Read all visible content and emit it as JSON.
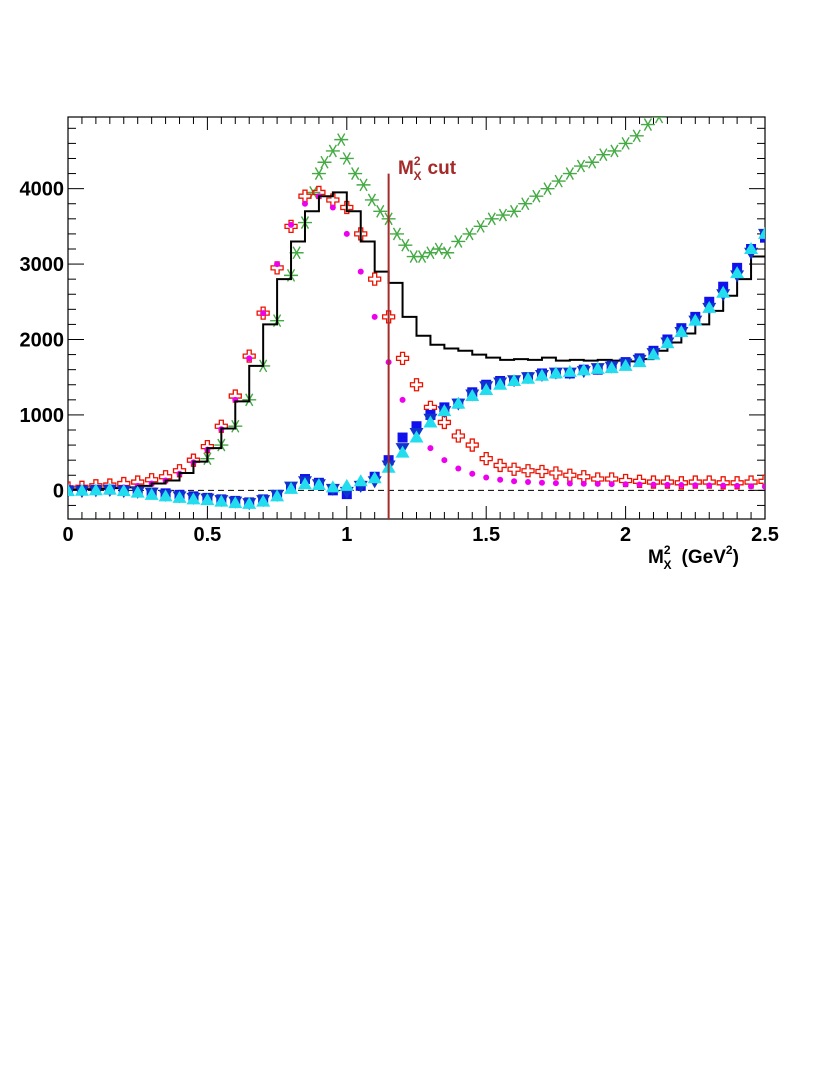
{
  "chart_data": {
    "type": "scatter",
    "title": "",
    "xlabel": {
      "base": "M",
      "sup": "2",
      "sub": "X",
      "units": "(GeV",
      "units_sup": "2",
      "units_close": ")"
    },
    "ylabel": "",
    "xlim": [
      0,
      2.5
    ],
    "ylim": [
      -380,
      4950
    ],
    "xticks": [
      0,
      0.5,
      1,
      1.5,
      2,
      2.5
    ],
    "xtick_labels": [
      "0",
      "0.5",
      "1",
      "1.5",
      "2",
      "2.5"
    ],
    "yticks": [
      0,
      1000,
      2000,
      3000,
      4000
    ],
    "ytick_labels": [
      "0",
      "1000",
      "2000",
      "3000",
      "4000"
    ],
    "grid": false,
    "zero_line": {
      "y": 0,
      "style": "dashed",
      "color": "#000000"
    },
    "cut": {
      "x": 1.15,
      "y_top": 4200,
      "color": "#a52a2a",
      "label": {
        "base": "M",
        "sup": "2",
        "sub": "X",
        "text": "cut"
      }
    },
    "series": [
      {
        "name": "data histogram",
        "style": "step",
        "color": "#000000",
        "x": [
          0.0,
          0.05,
          0.1,
          0.15,
          0.2,
          0.25,
          0.3,
          0.35,
          0.4,
          0.45,
          0.5,
          0.55,
          0.6,
          0.65,
          0.7,
          0.75,
          0.8,
          0.85,
          0.9,
          0.95,
          1.0,
          1.05,
          1.1,
          1.15,
          1.2,
          1.25,
          1.3,
          1.35,
          1.4,
          1.45,
          1.5,
          1.55,
          1.6,
          1.65,
          1.7,
          1.75,
          1.8,
          1.85,
          1.9,
          1.95,
          2.0,
          2.05,
          2.1,
          2.15,
          2.2,
          2.25,
          2.3,
          2.35,
          2.4,
          2.45,
          2.5
        ],
        "y": [
          10,
          15,
          20,
          30,
          40,
          60,
          90,
          130,
          230,
          380,
          560,
          820,
          1180,
          1650,
          2200,
          2800,
          3300,
          3700,
          3900,
          3950,
          3700,
          3300,
          2900,
          2750,
          2300,
          2050,
          1930,
          1880,
          1850,
          1800,
          1760,
          1730,
          1740,
          1730,
          1760,
          1720,
          1730,
          1720,
          1730,
          1720,
          1710,
          1740,
          1850,
          1960,
          2080,
          2200,
          2380,
          2580,
          2800,
          3100,
          3400
        ]
      },
      {
        "name": "simulation (magenta dots)",
        "style": "marker",
        "marker": "circle",
        "color": "#ee00ee",
        "x": [
          0.0,
          0.05,
          0.1,
          0.15,
          0.2,
          0.25,
          0.3,
          0.35,
          0.4,
          0.45,
          0.5,
          0.55,
          0.6,
          0.65,
          0.7,
          0.75,
          0.8,
          0.85,
          0.9,
          0.95,
          1.0,
          1.05,
          1.1,
          1.15,
          1.2,
          1.25,
          1.3,
          1.35,
          1.4,
          1.45,
          1.5,
          1.55,
          1.6,
          1.65,
          1.7,
          1.75,
          1.8,
          1.85,
          1.9,
          1.95,
          2.0,
          2.05,
          2.1,
          2.15,
          2.2,
          2.25,
          2.3,
          2.35,
          2.4,
          2.45,
          2.5
        ],
        "y": [
          10,
          15,
          20,
          30,
          40,
          60,
          90,
          130,
          220,
          370,
          540,
          810,
          1200,
          1750,
          2350,
          3000,
          3520,
          3800,
          3900,
          3750,
          3400,
          2900,
          2300,
          1700,
          1200,
          820,
          560,
          400,
          290,
          220,
          170,
          140,
          120,
          110,
          100,
          95,
          90,
          88,
          85,
          82,
          80,
          78,
          75,
          72,
          70,
          68,
          65,
          62,
          60,
          55,
          50
        ]
      },
      {
        "name": "red open crosses",
        "style": "marker",
        "marker": "open-cross",
        "color": "#ee1100",
        "x": [
          0.0,
          0.05,
          0.1,
          0.15,
          0.2,
          0.25,
          0.3,
          0.35,
          0.4,
          0.45,
          0.5,
          0.55,
          0.6,
          0.65,
          0.7,
          0.75,
          0.8,
          0.85,
          0.9,
          0.95,
          1.0,
          1.05,
          1.1,
          1.15,
          1.2,
          1.25,
          1.3,
          1.35,
          1.4,
          1.45,
          1.5,
          1.55,
          1.6,
          1.65,
          1.7,
          1.75,
          1.8,
          1.85,
          1.9,
          1.95,
          2.0,
          2.05,
          2.1,
          2.15,
          2.2,
          2.25,
          2.3,
          2.35,
          2.4,
          2.45,
          2.5
        ],
        "y": [
          30,
          40,
          60,
          70,
          90,
          110,
          140,
          180,
          260,
          400,
          580,
          850,
          1250,
          1780,
          2350,
          2950,
          3500,
          3900,
          3950,
          3850,
          3750,
          3400,
          2800,
          2300,
          1750,
          1400,
          1100,
          900,
          720,
          600,
          420,
          330,
          280,
          260,
          250,
          230,
          200,
          180,
          150,
          150,
          130,
          120,
          110,
          110,
          100,
          110,
          110,
          100,
          100,
          110,
          120
        ]
      },
      {
        "name": "green asterisks",
        "style": "marker",
        "marker": "asterisk",
        "color": "#44aa44",
        "x": [
          0.5,
          0.55,
          0.6,
          0.65,
          0.7,
          0.75,
          0.8,
          0.82,
          0.85,
          0.88,
          0.9,
          0.92,
          0.95,
          0.98,
          1.0,
          1.03,
          1.06,
          1.09,
          1.12,
          1.15,
          1.18,
          1.21,
          1.24,
          1.27,
          1.3,
          1.33,
          1.36,
          1.4,
          1.44,
          1.48,
          1.52,
          1.56,
          1.6,
          1.64,
          1.68,
          1.72,
          1.76,
          1.8,
          1.84,
          1.88,
          1.92,
          1.96,
          2.0,
          2.04,
          2.08,
          2.12
        ],
        "y": [
          420,
          600,
          850,
          1200,
          1650,
          2250,
          2850,
          3150,
          3550,
          3950,
          4200,
          4350,
          4500,
          4650,
          4400,
          4200,
          4050,
          3850,
          3700,
          3600,
          3400,
          3250,
          3100,
          3100,
          3150,
          3200,
          3150,
          3300,
          3400,
          3500,
          3600,
          3650,
          3700,
          3800,
          3900,
          4000,
          4100,
          4200,
          4300,
          4350,
          4450,
          4500,
          4600,
          4700,
          4850,
          4950
        ]
      },
      {
        "name": "blue squares",
        "style": "marker",
        "marker": "square",
        "color": "#1111ee",
        "x": [
          0.0,
          0.05,
          0.1,
          0.15,
          0.2,
          0.25,
          0.3,
          0.35,
          0.4,
          0.45,
          0.5,
          0.55,
          0.6,
          0.65,
          0.7,
          0.75,
          0.8,
          0.85,
          0.9,
          0.95,
          1.0,
          1.05,
          1.1,
          1.15,
          1.2,
          1.25,
          1.3,
          1.35,
          1.4,
          1.45,
          1.5,
          1.55,
          1.6,
          1.65,
          1.7,
          1.75,
          1.8,
          1.85,
          1.9,
          1.95,
          2.0,
          2.05,
          2.1,
          2.15,
          2.2,
          2.25,
          2.3,
          2.35,
          2.4,
          2.45,
          2.5
        ],
        "y": [
          0,
          0,
          5,
          10,
          0,
          -20,
          -30,
          -40,
          -60,
          -80,
          -100,
          -120,
          -140,
          -160,
          -120,
          -60,
          40,
          150,
          100,
          0,
          -50,
          60,
          180,
          400,
          700,
          850,
          1000,
          1100,
          1150,
          1300,
          1400,
          1450,
          1450,
          1500,
          1550,
          1550,
          1550,
          1600,
          1600,
          1650,
          1700,
          1750,
          1850,
          2000,
          2150,
          2300,
          2500,
          2700,
          2950,
          3200,
          3350
        ]
      },
      {
        "name": "blue inverted triangles",
        "style": "marker",
        "marker": "triangle-down",
        "color": "#1133cc",
        "x": [
          0.0,
          0.05,
          0.1,
          0.15,
          0.2,
          0.25,
          0.3,
          0.35,
          0.4,
          0.45,
          0.5,
          0.55,
          0.6,
          0.65,
          0.7,
          0.75,
          0.8,
          0.85,
          0.9,
          0.95,
          1.0,
          1.05,
          1.1,
          1.15,
          1.2,
          1.25,
          1.3,
          1.35,
          1.4,
          1.45,
          1.5,
          1.55,
          1.6,
          1.65,
          1.7,
          1.75,
          1.8,
          1.85,
          1.9,
          1.95,
          2.0,
          2.05,
          2.1,
          2.15,
          2.2,
          2.25,
          2.3,
          2.35,
          2.4,
          2.45,
          2.5
        ],
        "y": [
          -10,
          -10,
          0,
          5,
          -10,
          -20,
          -30,
          -60,
          -80,
          -100,
          -110,
          -130,
          -150,
          -170,
          -130,
          -60,
          50,
          120,
          80,
          20,
          -20,
          60,
          120,
          330,
          560,
          760,
          950,
          1050,
          1150,
          1270,
          1380,
          1430,
          1460,
          1500,
          1530,
          1560,
          1560,
          1580,
          1620,
          1640,
          1680,
          1730,
          1820,
          1960,
          2100,
          2250,
          2420,
          2600,
          2850,
          3150,
          3400
        ]
      },
      {
        "name": "cyan triangles",
        "style": "marker",
        "marker": "triangle-up",
        "color": "#22ddee",
        "x": [
          0.0,
          0.05,
          0.1,
          0.15,
          0.2,
          0.25,
          0.3,
          0.35,
          0.4,
          0.45,
          0.5,
          0.55,
          0.6,
          0.65,
          0.7,
          0.75,
          0.8,
          0.85,
          0.9,
          0.95,
          1.0,
          1.05,
          1.1,
          1.15,
          1.2,
          1.25,
          1.3,
          1.35,
          1.4,
          1.45,
          1.5,
          1.55,
          1.6,
          1.65,
          1.7,
          1.75,
          1.8,
          1.85,
          1.9,
          1.95,
          2.0,
          2.05,
          2.1,
          2.15,
          2.2,
          2.25,
          2.3,
          2.35,
          2.4,
          2.45,
          2.5
        ],
        "y": [
          -10,
          -5,
          0,
          10,
          -10,
          -30,
          -60,
          -80,
          -100,
          -120,
          -130,
          -150,
          -170,
          -180,
          -150,
          -80,
          20,
          80,
          70,
          40,
          60,
          120,
          160,
          300,
          500,
          700,
          900,
          1050,
          1150,
          1250,
          1330,
          1400,
          1450,
          1480,
          1520,
          1550,
          1570,
          1590,
          1610,
          1620,
          1650,
          1700,
          1800,
          1950,
          2100,
          2250,
          2420,
          2620,
          2880,
          3200,
          3400
        ]
      }
    ]
  }
}
